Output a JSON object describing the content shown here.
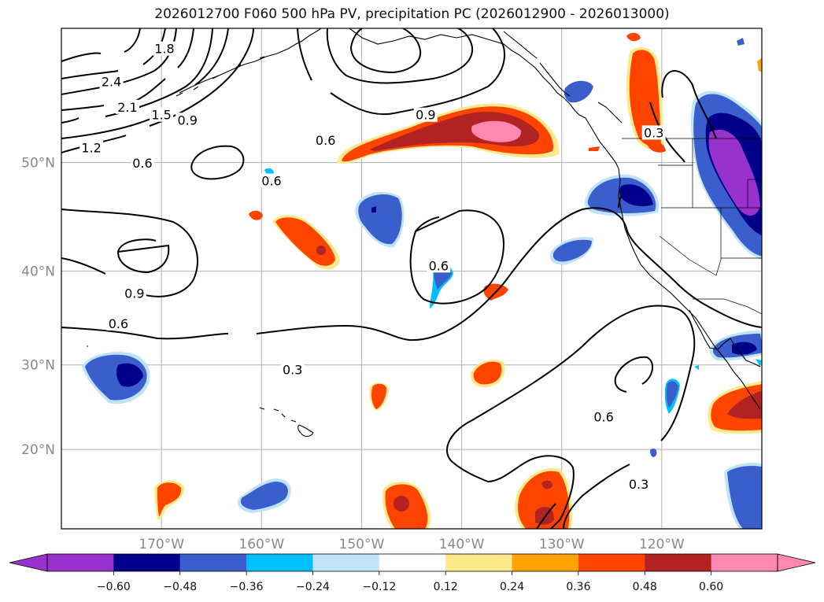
{
  "title": "2026012700 F060 500 hPa PV, precipitation PC (2026012900 - 2026013000)",
  "colors": {
    "pos": [
      "#fde98c",
      "#ffa400",
      "#ff4400",
      "#b22222",
      "#ff88b0"
    ],
    "neg": [
      "#bfe3f7",
      "#00bfff",
      "#3a5fcd",
      "#00008b",
      "#9932cc"
    ]
  },
  "map": {
    "lon_range": [
      -180,
      -110
    ],
    "lat_range": [
      10,
      60
    ],
    "lon_labels": [
      {
        "lon": -170,
        "text": "170°W"
      },
      {
        "lon": -160,
        "text": "160°W"
      },
      {
        "lon": -150,
        "text": "150°W"
      },
      {
        "lon": -140,
        "text": "140°W"
      },
      {
        "lon": -130,
        "text": "130°W"
      },
      {
        "lon": -120,
        "text": "120°W"
      }
    ],
    "lat_labels": [
      {
        "lat": 50,
        "text": "50°N"
      },
      {
        "lat": 40,
        "text": "40°N"
      },
      {
        "lat": 30,
        "text": "30°N"
      },
      {
        "lat": 20,
        "text": "20°N"
      }
    ],
    "contour_labels": [
      {
        "text": "2.4",
        "lon": -175,
        "lat": 56.3
      },
      {
        "text": "2.1",
        "lon": -173.4,
        "lat": 54.4
      },
      {
        "text": "1.8",
        "lon": -169.7,
        "lat": 58.6
      },
      {
        "text": "1.5",
        "lon": -170.0,
        "lat": 53.8
      },
      {
        "text": "1.2",
        "lon": -177.0,
        "lat": 51.2
      },
      {
        "text": "0.9",
        "lon": -167.4,
        "lat": 53.4
      },
      {
        "text": "0.6",
        "lon": -171.9,
        "lat": 49.9
      },
      {
        "text": "0.6",
        "lon": -153.6,
        "lat": 51.8
      },
      {
        "text": "0.6",
        "lon": -159.0,
        "lat": 48.4
      },
      {
        "text": "0.9",
        "lon": -143.6,
        "lat": 53.8
      },
      {
        "text": "0.9",
        "lon": -172.7,
        "lat": 37.7
      },
      {
        "text": "0.6",
        "lon": -174.3,
        "lat": 34.5
      },
      {
        "text": "0.6",
        "lon": -142.3,
        "lat": 40.5
      },
      {
        "text": "0.3",
        "lon": -156.9,
        "lat": 29.4
      },
      {
        "text": "0.6",
        "lon": -125.8,
        "lat": 23.9
      },
      {
        "text": "0.3",
        "lon": -122.3,
        "lat": 15.6
      },
      {
        "text": "0.3",
        "lon": -120.8,
        "lat": 52.4
      }
    ]
  },
  "colorbar": {
    "ticks": [
      "−0.60",
      "−0.48",
      "−0.36",
      "−0.24",
      "−0.12",
      "0.12",
      "0.24",
      "0.36",
      "0.48",
      "0.60"
    ],
    "levels": [
      -0.6,
      -0.48,
      -0.36,
      -0.24,
      -0.12,
      0.12,
      0.24,
      0.36,
      0.48,
      0.6
    ]
  }
}
